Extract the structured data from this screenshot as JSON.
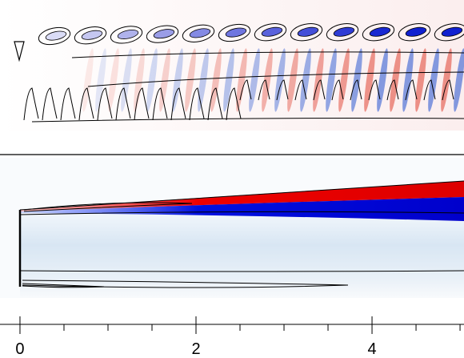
{
  "chart_data": {
    "type": "field",
    "xlim": [
      -0.227,
      5.045
    ],
    "xticks": [
      0,
      2,
      4
    ],
    "xminorticks": [
      0.5,
      1,
      1.5,
      2.5,
      3,
      3.5,
      4.5,
      5
    ]
  }
}
